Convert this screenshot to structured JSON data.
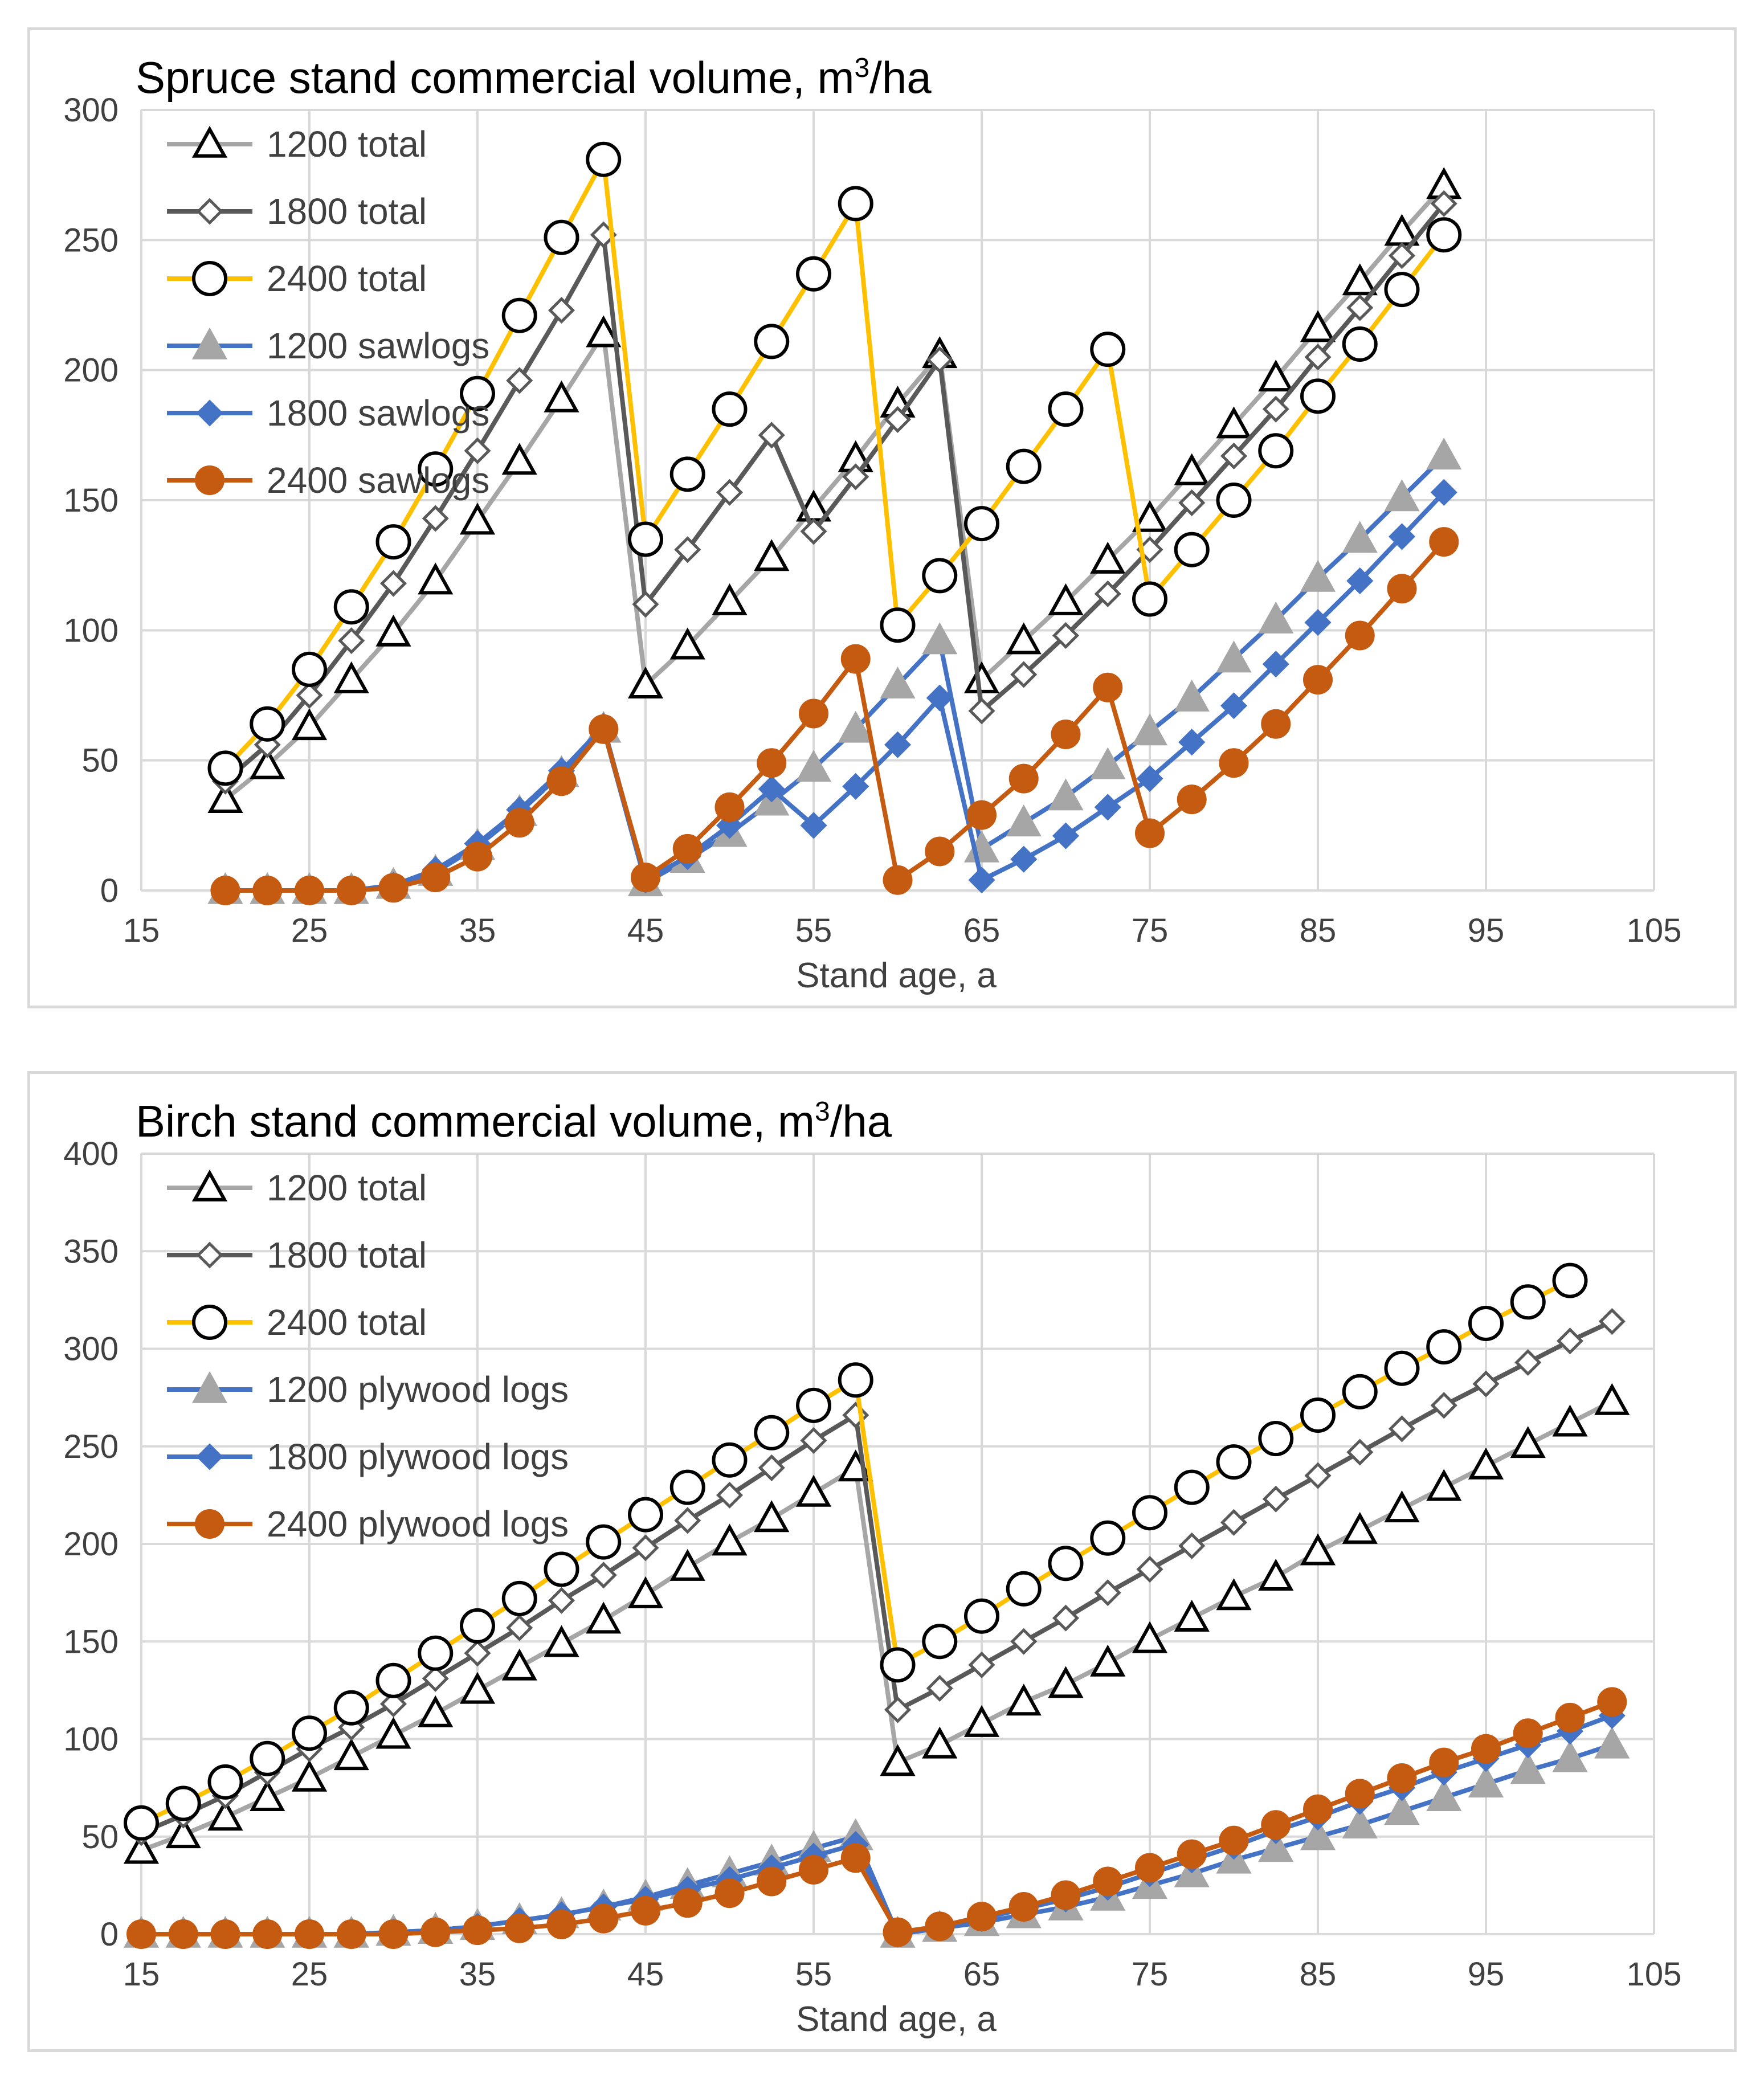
{
  "colors": {
    "grid": "#d9d9d9",
    "s1200total": "#a6a6a6",
    "s1800total": "#595959",
    "s2400total": "#ffc000",
    "s1200sub": "#4472c4",
    "s1800sub": "#4472c4",
    "s2400sub": "#c55a11",
    "marker_gray": "#a6a6a6",
    "marker_dark": "#000000",
    "marker_blue": "#4472c4",
    "marker_brown": "#c55a11"
  },
  "chart_data": [
    {
      "type": "line",
      "title": "Spruce stand commercial volume,  m³/ha",
      "title_main": "Spruce stand commercial volume,  m",
      "title_sup": "3",
      "title_tail": "/ha",
      "xlabel": "Stand age, a",
      "ylabel": "",
      "xlim": [
        15,
        105
      ],
      "ylim": [
        0,
        300
      ],
      "xticks": [
        "15",
        "25",
        "35",
        "45",
        "55",
        "65",
        "75",
        "85",
        "95",
        "105"
      ],
      "yticks": [
        "0",
        "50",
        "100",
        "150",
        "200",
        "250",
        "300"
      ],
      "grid": true,
      "legend_position": "top-left",
      "series": [
        {
          "name": "1200 total",
          "style": "s1200total",
          "marker": "triangle-open",
          "x": [
            20,
            22.5,
            25,
            27.5,
            30,
            32.5,
            35,
            37.5,
            40,
            42.5,
            45,
            47.5,
            50,
            52.5,
            55,
            57.5,
            60,
            62.5,
            65,
            67.5,
            70,
            72.5,
            75,
            77.5,
            80,
            82.5,
            85,
            87.5,
            90,
            92.5
          ],
          "y": [
            35,
            48,
            63,
            81,
            99,
            119,
            142,
            165,
            189,
            214,
            79,
            94,
            111,
            128,
            147,
            166,
            187,
            206,
            81,
            96,
            111,
            127,
            143,
            161,
            179,
            197,
            216,
            234,
            253,
            271
          ]
        },
        {
          "name": "1800 total",
          "style": "s1800total",
          "marker": "diamond-open",
          "x": [
            20,
            22.5,
            25,
            27.5,
            30,
            32.5,
            35,
            37.5,
            40,
            42.5,
            45,
            47.5,
            50,
            52.5,
            55,
            57.5,
            60,
            62.5,
            65,
            67.5,
            70,
            72.5,
            75,
            77.5,
            80,
            82.5,
            85,
            87.5,
            90,
            92.5
          ],
          "y": [
            42,
            56,
            75,
            96,
            118,
            143,
            169,
            196,
            223,
            252,
            110,
            131,
            153,
            175,
            138,
            159,
            181,
            204,
            69,
            83,
            98,
            114,
            131,
            149,
            167,
            185,
            205,
            224,
            244,
            264
          ]
        },
        {
          "name": "2400 total",
          "style": "s2400total",
          "marker": "circle-open",
          "x": [
            20,
            22.5,
            25,
            27.5,
            30,
            32.5,
            35,
            37.5,
            40,
            42.5,
            45,
            47.5,
            50,
            52.5,
            55,
            57.5,
            60,
            62.5,
            65,
            67.5,
            70,
            72.5,
            75,
            77.5,
            80,
            82.5,
            85,
            87.5,
            90,
            92.5
          ],
          "y": [
            47,
            64,
            85,
            109,
            134,
            162,
            191,
            221,
            251,
            281,
            135,
            160,
            185,
            211,
            237,
            264,
            102,
            121,
            141,
            163,
            185,
            208,
            112,
            131,
            150,
            169,
            190,
            210,
            231,
            252
          ]
        },
        {
          "name": "1200 sawlogs",
          "style": "s1200sub",
          "marker": "triangle-gray",
          "x": [
            20,
            22.5,
            25,
            27.5,
            30,
            32.5,
            35,
            37.5,
            40,
            42.5,
            45,
            47.5,
            50,
            52.5,
            55,
            57.5,
            60,
            62.5,
            65,
            67.5,
            70,
            72.5,
            75,
            77.5,
            80,
            82.5,
            85,
            87.5,
            90,
            92.5
          ],
          "y": [
            0,
            0,
            0,
            0,
            2,
            7,
            17,
            30,
            45,
            62,
            3,
            12,
            22,
            34,
            47,
            62,
            79,
            96,
            16,
            26,
            36,
            48,
            61,
            74,
            89,
            104,
            120,
            135,
            151,
            167
          ]
        },
        {
          "name": "1800 sawlogs",
          "style": "s1800sub",
          "marker": "diamond-blue",
          "x": [
            20,
            22.5,
            25,
            27.5,
            30,
            32.5,
            35,
            37.5,
            40,
            42.5,
            45,
            47.5,
            50,
            52.5,
            55,
            57.5,
            60,
            62.5,
            65,
            67.5,
            70,
            72.5,
            75,
            77.5,
            80,
            82.5,
            85,
            87.5,
            90,
            92.5
          ],
          "y": [
            0,
            0,
            0,
            0,
            2,
            8,
            18,
            31,
            46,
            63,
            4,
            13,
            25,
            39,
            25,
            40,
            56,
            74,
            4,
            12,
            21,
            32,
            43,
            57,
            71,
            87,
            103,
            119,
            136,
            153
          ]
        },
        {
          "name": "2400 sawlogs",
          "style": "s2400sub",
          "marker": "circle-brown",
          "x": [
            20,
            22.5,
            25,
            27.5,
            30,
            32.5,
            35,
            37.5,
            40,
            42.5,
            45,
            47.5,
            50,
            52.5,
            55,
            57.5,
            60,
            62.5,
            65,
            67.5,
            70,
            72.5,
            75,
            77.5,
            80,
            82.5,
            85,
            87.5,
            90,
            92.5
          ],
          "y": [
            0,
            0,
            0,
            0,
            1,
            5,
            13,
            26,
            42,
            62,
            5,
            16,
            32,
            49,
            68,
            89,
            4,
            15,
            29,
            43,
            60,
            78,
            22,
            35,
            49,
            64,
            81,
            98,
            116,
            134
          ]
        }
      ]
    },
    {
      "type": "line",
      "title": "Birch stand commercial volume,  m³/ha",
      "title_main": "Birch stand commercial volume,  m",
      "title_sup": "3",
      "title_tail": "/ha",
      "xlabel": "Stand age, a",
      "ylabel": "",
      "xlim": [
        15,
        105
      ],
      "ylim": [
        0,
        400
      ],
      "xticks": [
        "15",
        "25",
        "35",
        "45",
        "55",
        "65",
        "75",
        "85",
        "95",
        "105"
      ],
      "yticks": [
        "0",
        "50",
        "100",
        "150",
        "200",
        "250",
        "300",
        "350",
        "400"
      ],
      "grid": true,
      "legend_position": "top-left",
      "series": [
        {
          "name": "1200 total",
          "style": "s1200total",
          "marker": "triangle-open",
          "x": [
            15,
            17.5,
            20,
            22.5,
            25,
            27.5,
            30,
            32.5,
            35,
            37.5,
            40,
            42.5,
            45,
            47.5,
            50,
            52.5,
            55,
            57.5,
            60,
            62.5,
            65,
            67.5,
            70,
            72.5,
            75,
            77.5,
            80,
            82.5,
            85,
            87.5,
            90,
            92.5,
            95,
            97.5,
            100,
            102.5
          ],
          "y": [
            43,
            51,
            60,
            70,
            80,
            91,
            102,
            113,
            125,
            137,
            149,
            161,
            174,
            188,
            201,
            213,
            226,
            239,
            88,
            97,
            108,
            119,
            128,
            139,
            151,
            162,
            173,
            183,
            196,
            207,
            218,
            229,
            240,
            251,
            262,
            273
          ]
        },
        {
          "name": "1800 total",
          "style": "s1800total",
          "marker": "diamond-open",
          "x": [
            15,
            17.5,
            20,
            22.5,
            25,
            27.5,
            30,
            32.5,
            35,
            37.5,
            40,
            42.5,
            45,
            47.5,
            50,
            52.5,
            55,
            57.5,
            60,
            62.5,
            65,
            67.5,
            70,
            72.5,
            75,
            77.5,
            80,
            82.5,
            85,
            87.5,
            90,
            92.5,
            95,
            97.5,
            100,
            102.5
          ],
          "y": [
            52,
            61,
            71,
            83,
            95,
            106,
            118,
            131,
            144,
            157,
            171,
            184,
            198,
            212,
            225,
            239,
            253,
            266,
            115,
            126,
            138,
            150,
            162,
            175,
            187,
            199,
            211,
            223,
            235,
            247,
            259,
            271,
            282,
            293,
            304,
            314
          ]
        },
        {
          "name": "2400 total",
          "style": "s2400total",
          "marker": "circle-open",
          "x": [
            15,
            17.5,
            20,
            22.5,
            25,
            27.5,
            30,
            32.5,
            35,
            37.5,
            40,
            42.5,
            45,
            47.5,
            50,
            52.5,
            55,
            57.5,
            60,
            62.5,
            65,
            67.5,
            70,
            72.5,
            75,
            77.5,
            80,
            82.5,
            85,
            87.5,
            90,
            92.5,
            95,
            97.5,
            100
          ],
          "y": [
            57,
            67,
            78,
            90,
            103,
            116,
            130,
            144,
            158,
            172,
            187,
            201,
            215,
            229,
            243,
            257,
            271,
            284,
            138,
            150,
            163,
            177,
            190,
            203,
            216,
            229,
            242,
            254,
            266,
            278,
            290,
            301,
            313,
            324,
            335
          ]
        },
        {
          "name": "1200 plywood logs",
          "style": "s1200sub",
          "marker": "triangle-gray",
          "x": [
            15,
            17.5,
            20,
            22.5,
            25,
            27.5,
            30,
            32.5,
            35,
            37.5,
            40,
            42.5,
            45,
            47.5,
            50,
            52.5,
            55,
            57.5,
            60,
            62.5,
            65,
            67.5,
            70,
            72.5,
            75,
            77.5,
            80,
            82.5,
            85,
            87.5,
            90,
            92.5,
            95,
            97.5,
            100,
            102.5
          ],
          "y": [
            0,
            0,
            0,
            0,
            0,
            0,
            1,
            2,
            4,
            7,
            10,
            14,
            19,
            25,
            31,
            37,
            44,
            50,
            0,
            3,
            6,
            10,
            14,
            19,
            25,
            31,
            38,
            44,
            50,
            56,
            63,
            70,
            77,
            84,
            90,
            97
          ]
        },
        {
          "name": "1800 plywood logs",
          "style": "s1800sub",
          "marker": "diamond-blue",
          "x": [
            15,
            17.5,
            20,
            22.5,
            25,
            27.5,
            30,
            32.5,
            35,
            37.5,
            40,
            42.5,
            45,
            47.5,
            50,
            52.5,
            55,
            57.5,
            60,
            62.5,
            65,
            67.5,
            70,
            72.5,
            75,
            77.5,
            80,
            82.5,
            85,
            87.5,
            90,
            92.5,
            95,
            97.5,
            100,
            102.5
          ],
          "y": [
            0,
            0,
            0,
            0,
            0,
            0,
            1,
            2,
            4,
            7,
            10,
            14,
            18,
            23,
            28,
            34,
            40,
            46,
            0,
            4,
            8,
            13,
            18,
            24,
            31,
            38,
            45,
            53,
            60,
            68,
            75,
            83,
            90,
            97,
            104,
            112
          ]
        },
        {
          "name": "2400 plywood logs",
          "style": "s2400sub",
          "marker": "circle-brown",
          "x": [
            15,
            17.5,
            20,
            22.5,
            25,
            27.5,
            30,
            32.5,
            35,
            37.5,
            40,
            42.5,
            45,
            47.5,
            50,
            52.5,
            55,
            57.5,
            60,
            62.5,
            65,
            67.5,
            70,
            72.5,
            75,
            77.5,
            80,
            82.5,
            85,
            87.5,
            90,
            92.5,
            95,
            97.5,
            100,
            102.5
          ],
          "y": [
            0,
            0,
            0,
            0,
            0,
            0,
            0,
            1,
            2,
            3,
            5,
            8,
            12,
            16,
            21,
            27,
            33,
            39,
            1,
            4,
            9,
            14,
            20,
            27,
            34,
            41,
            48,
            56,
            64,
            72,
            80,
            88,
            95,
            103,
            111,
            119
          ]
        }
      ]
    }
  ]
}
